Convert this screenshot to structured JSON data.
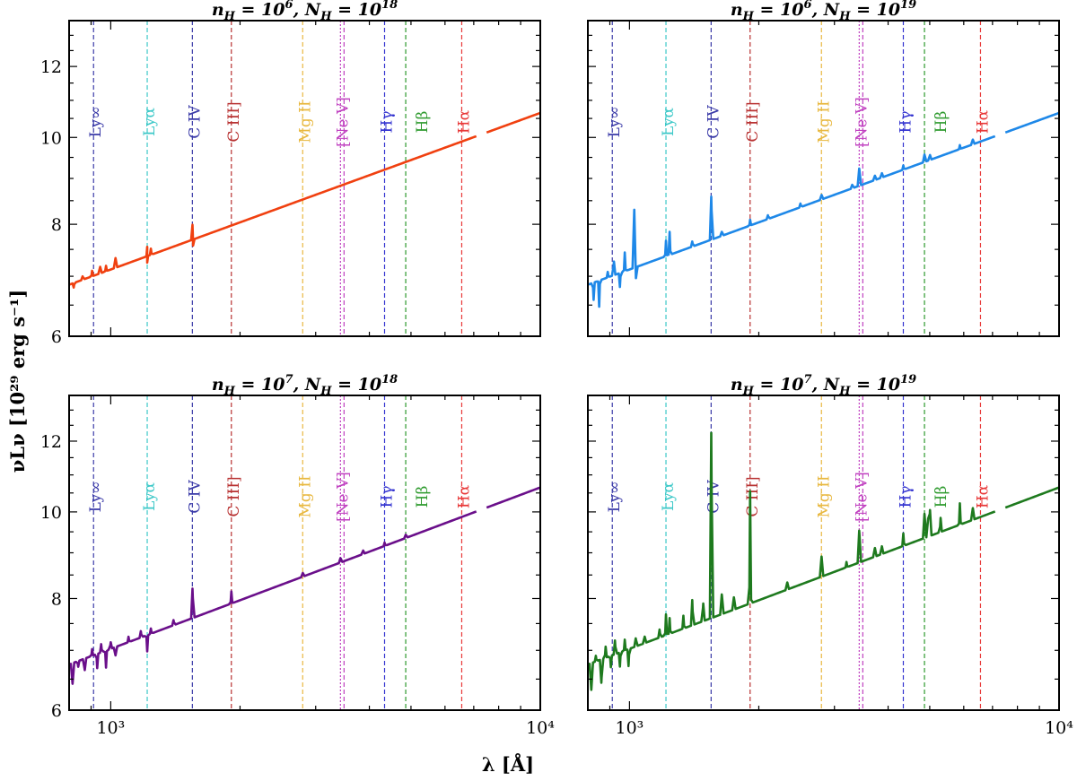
{
  "chart_data": {
    "type": "line",
    "figure": {
      "ylabel": "νLν [10²⁹ erg s⁻¹]",
      "xlabel": "λ [Å]",
      "xscale": "log",
      "yscale": "log",
      "xlim": [
        800,
        10000
      ],
      "ylim": [
        6,
        13.5
      ],
      "x_ticks": [
        {
          "value": 1000,
          "label": "10³"
        },
        {
          "value": 10000,
          "label": "10⁴"
        }
      ],
      "y_ticks": [
        {
          "value": 6,
          "label": "6"
        },
        {
          "value": 8,
          "label": "8"
        },
        {
          "value": 10,
          "label": "10"
        },
        {
          "value": 12,
          "label": "12"
        }
      ]
    },
    "reference_lines": [
      {
        "label": "Ly∞",
        "wavelength": 912,
        "color": "#3a3aa8",
        "style": "dashed"
      },
      {
        "label": "Lyα",
        "wavelength": 1216,
        "color": "#3cc8c8",
        "style": "dashed"
      },
      {
        "label": "C IV",
        "wavelength": 1549,
        "color": "#3a3aa8",
        "style": "dashed"
      },
      {
        "label": "C III]",
        "wavelength": 1909,
        "color": "#b83232",
        "style": "dashed"
      },
      {
        "label": "Mg II",
        "wavelength": 2798,
        "color": "#e8b840",
        "style": "dashed"
      },
      {
        "label": "[Ne V]",
        "wavelength": 3426,
        "color": "#c040c0",
        "style": "dotted"
      },
      {
        "label": "Hγ",
        "wavelength": 4340,
        "color": "#3434d0",
        "style": "dashed"
      },
      {
        "label": "Hβ",
        "wavelength": 4861,
        "color": "#2e9a2e",
        "style": "dashed"
      },
      {
        "label": "Hα",
        "wavelength": 6563,
        "color": "#e83838",
        "style": "dashed"
      }
    ],
    "panels": [
      {
        "title_text": "nH = 10⁶, NH = 10¹⁸",
        "title": {
          "a": "10",
          "ae": "6",
          "b": "10",
          "be": "18"
        },
        "color": "#f04010",
        "continuum": {
          "x": [
            800,
            10000
          ],
          "y": [
            6.85,
            10.65
          ]
        },
        "features": [
          {
            "x": 820,
            "dy": -0.08
          },
          {
            "x": 860,
            "dy": 0.06
          },
          {
            "x": 905,
            "dy": 0.1
          },
          {
            "x": 945,
            "dy": 0.12
          },
          {
            "x": 975,
            "dy": 0.1
          },
          {
            "x": 1026,
            "dy": 0.18
          },
          {
            "x": 1216,
            "dy": 0.18
          },
          {
            "x": 1216,
            "dy": -0.12
          },
          {
            "x": 1240,
            "dy": 0.12
          },
          {
            "x": 1550,
            "dy": 0.3
          },
          {
            "x": 1555,
            "dy": -0.12
          }
        ],
        "gap": [
          7150,
          7500
        ]
      },
      {
        "title_text": "nH = 10⁶, NH = 10¹⁹",
        "title": {
          "a": "10",
          "ae": "6",
          "b": "10",
          "be": "19"
        },
        "color": "#1e88e8",
        "continuum": {
          "x": [
            800,
            10000
          ],
          "y": [
            6.85,
            10.65
          ]
        },
        "features": [
          {
            "x": 825,
            "dy": -0.3
          },
          {
            "x": 850,
            "dy": -0.45
          },
          {
            "x": 890,
            "dy": 0.1
          },
          {
            "x": 920,
            "dy": 0.25
          },
          {
            "x": 950,
            "dy": -0.25
          },
          {
            "x": 975,
            "dy": 0.35
          },
          {
            "x": 1026,
            "dy": 1.15
          },
          {
            "x": 1035,
            "dy": -0.2
          },
          {
            "x": 1216,
            "dy": 0.3
          },
          {
            "x": 1240,
            "dy": 0.45
          },
          {
            "x": 1400,
            "dy": 0.1
          },
          {
            "x": 1550,
            "dy": 0.9
          },
          {
            "x": 1640,
            "dy": 0.08
          },
          {
            "x": 1909,
            "dy": 0.12
          },
          {
            "x": 2100,
            "dy": 0.08
          },
          {
            "x": 2500,
            "dy": 0.08
          },
          {
            "x": 2800,
            "dy": 0.1
          },
          {
            "x": 3300,
            "dy": 0.08
          },
          {
            "x": 3426,
            "dy": 0.4
          },
          {
            "x": 3727,
            "dy": 0.1
          },
          {
            "x": 3869,
            "dy": 0.1
          },
          {
            "x": 4340,
            "dy": 0.1
          },
          {
            "x": 4861,
            "dy": 0.18
          },
          {
            "x": 5007,
            "dy": 0.12
          },
          {
            "x": 5876,
            "dy": 0.1
          },
          {
            "x": 6300,
            "dy": 0.12
          }
        ],
        "gap": [
          7150,
          7500
        ]
      },
      {
        "title_text": "nH = 10⁷, NH = 10¹⁸",
        "title": {
          "a": "10",
          "ae": "7",
          "b": "10",
          "be": "18"
        },
        "color": "#6a0f8a",
        "continuum": {
          "x": [
            800,
            10000
          ],
          "y": [
            6.75,
            10.65
          ]
        },
        "features": [
          {
            "x": 815,
            "dy": -0.35
          },
          {
            "x": 840,
            "dy": -0.1
          },
          {
            "x": 870,
            "dy": -0.2
          },
          {
            "x": 905,
            "dy": 0.12
          },
          {
            "x": 930,
            "dy": -0.25
          },
          {
            "x": 950,
            "dy": 0.15
          },
          {
            "x": 975,
            "dy": -0.3
          },
          {
            "x": 1000,
            "dy": 0.12
          },
          {
            "x": 1026,
            "dy": -0.15
          },
          {
            "x": 1100,
            "dy": 0.1
          },
          {
            "x": 1175,
            "dy": 0.12
          },
          {
            "x": 1216,
            "dy": -0.3
          },
          {
            "x": 1240,
            "dy": 0.1
          },
          {
            "x": 1400,
            "dy": 0.1
          },
          {
            "x": 1550,
            "dy": 0.6
          },
          {
            "x": 1909,
            "dy": 0.25
          },
          {
            "x": 2800,
            "dy": 0.08
          },
          {
            "x": 3426,
            "dy": 0.1
          },
          {
            "x": 3869,
            "dy": 0.08
          },
          {
            "x": 4340,
            "dy": 0.08
          },
          {
            "x": 4861,
            "dy": 0.08
          }
        ],
        "gap": [
          7150,
          7500
        ]
      },
      {
        "title_text": "nH = 10⁷, NH = 10¹⁹",
        "title": {
          "a": "10",
          "ae": "7",
          "b": "10",
          "be": "19"
        },
        "color": "#1e7a1e",
        "continuum": {
          "x": [
            800,
            10000
          ],
          "y": [
            6.75,
            10.65
          ]
        },
        "features": [
          {
            "x": 815,
            "dy": -0.45
          },
          {
            "x": 835,
            "dy": 0.1
          },
          {
            "x": 860,
            "dy": -0.4
          },
          {
            "x": 880,
            "dy": 0.2
          },
          {
            "x": 905,
            "dy": -0.2
          },
          {
            "x": 925,
            "dy": 0.25
          },
          {
            "x": 950,
            "dy": -0.25
          },
          {
            "x": 975,
            "dy": 0.2
          },
          {
            "x": 995,
            "dy": -0.3
          },
          {
            "x": 1034,
            "dy": 0.15
          },
          {
            "x": 1085,
            "dy": 0.12
          },
          {
            "x": 1175,
            "dy": 0.15
          },
          {
            "x": 1216,
            "dy": 0.4
          },
          {
            "x": 1240,
            "dy": 0.3
          },
          {
            "x": 1335,
            "dy": 0.25
          },
          {
            "x": 1400,
            "dy": 0.5
          },
          {
            "x": 1485,
            "dy": 0.35
          },
          {
            "x": 1550,
            "dy": 4.65
          },
          {
            "x": 1640,
            "dy": 0.4
          },
          {
            "x": 1750,
            "dy": 0.25
          },
          {
            "x": 1909,
            "dy": 2.65
          },
          {
            "x": 2330,
            "dy": 0.15
          },
          {
            "x": 2800,
            "dy": 0.45
          },
          {
            "x": 3200,
            "dy": 0.12
          },
          {
            "x": 3426,
            "dy": 0.75
          },
          {
            "x": 3727,
            "dy": 0.2
          },
          {
            "x": 3869,
            "dy": 0.18
          },
          {
            "x": 4340,
            "dy": 0.3
          },
          {
            "x": 4861,
            "dy": 0.6
          },
          {
            "x": 4959,
            "dy": 0.45
          },
          {
            "x": 5007,
            "dy": 0.65
          },
          {
            "x": 5300,
            "dy": 0.35
          },
          {
            "x": 5876,
            "dy": 0.55
          },
          {
            "x": 6300,
            "dy": 0.3
          }
        ],
        "gap": [
          7150,
          7500
        ]
      }
    ]
  }
}
